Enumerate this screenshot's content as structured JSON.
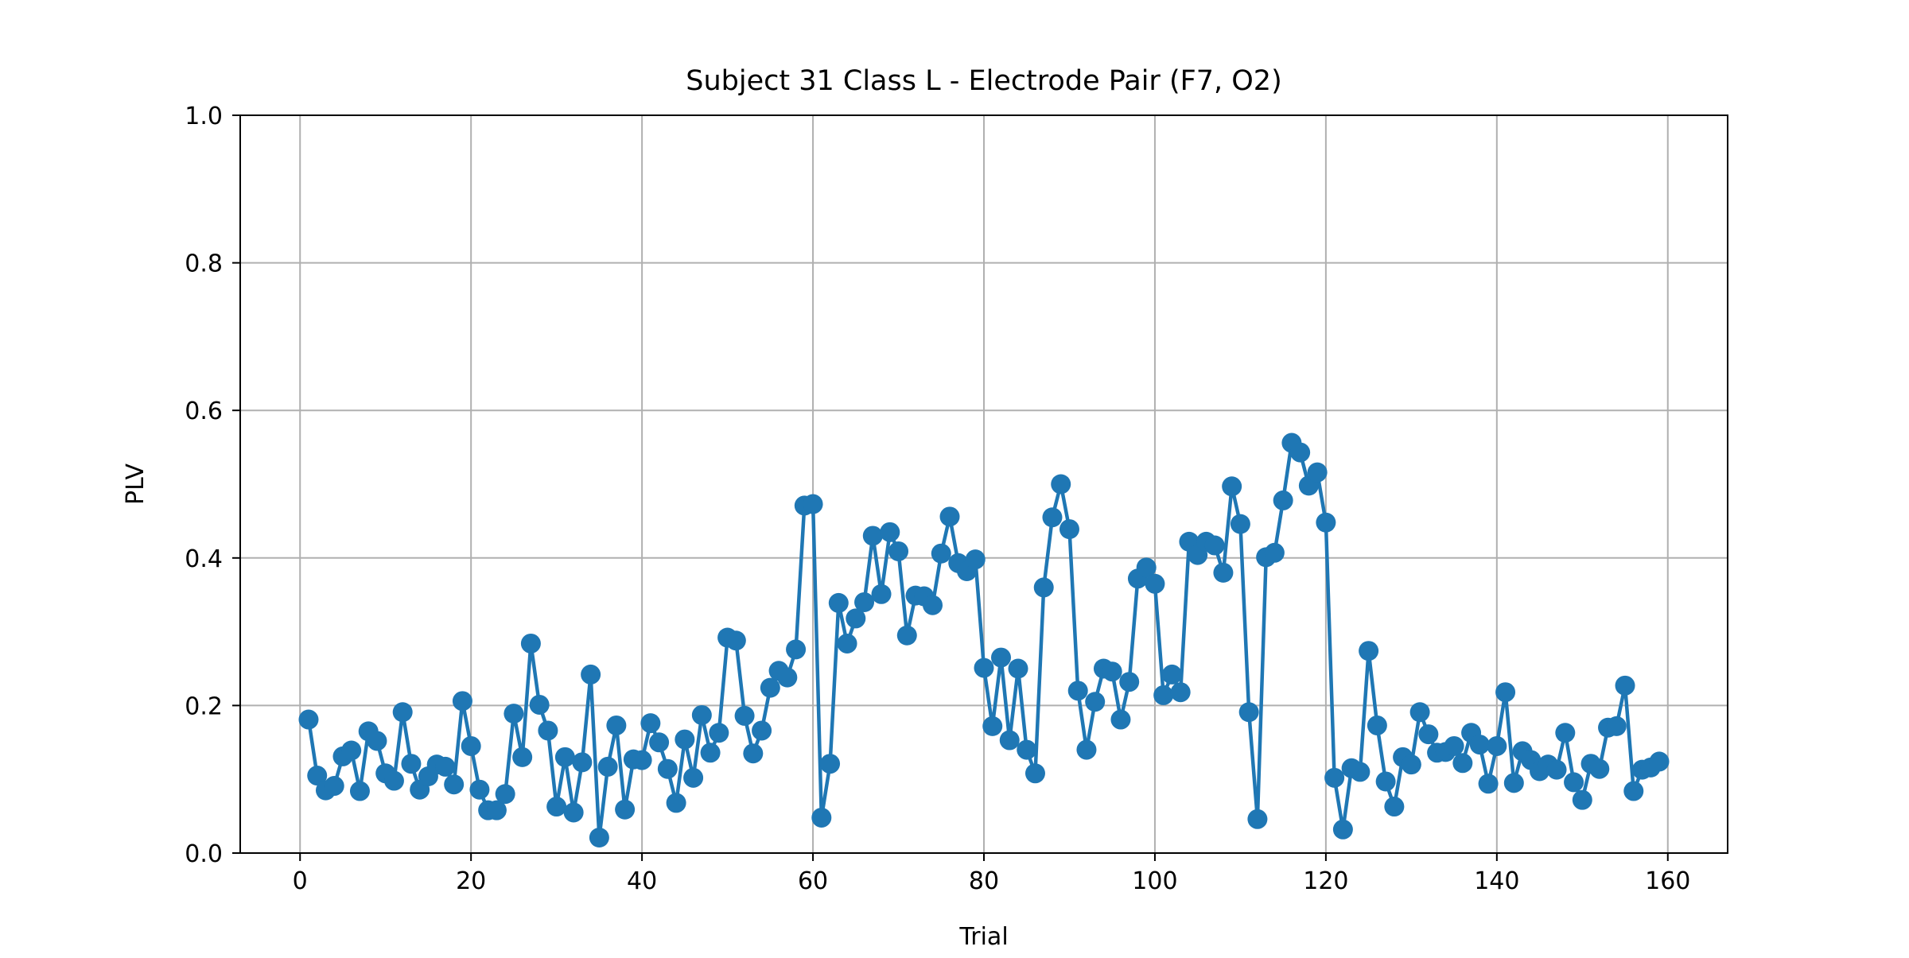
{
  "colors": {
    "series": "#1f77b4",
    "grid": "#b0b0b0",
    "axis": "#000000",
    "background": "#ffffff"
  },
  "chart_data": {
    "type": "line",
    "markers": "circle",
    "title": "Subject 31 Class L - Electrode Pair (F7, O2)",
    "xlabel": "Trial",
    "ylabel": "PLV",
    "xlim": [
      -7,
      167
    ],
    "ylim": [
      0.0,
      1.0
    ],
    "grid": true,
    "xticks": [
      0,
      20,
      40,
      60,
      80,
      100,
      120,
      140,
      160
    ],
    "xtick_labels": [
      "0",
      "20",
      "40",
      "60",
      "80",
      "100",
      "120",
      "140",
      "160"
    ],
    "yticks": [
      0.0,
      0.2,
      0.4,
      0.6,
      0.8,
      1.0
    ],
    "ytick_labels": [
      "0.0",
      "0.2",
      "0.4",
      "0.6",
      "0.8",
      "1.0"
    ],
    "series": [
      {
        "x": [
          1,
          2,
          3,
          4,
          5,
          6,
          7,
          8,
          9,
          10,
          11,
          12,
          13,
          14,
          15,
          16,
          17,
          18,
          19,
          20,
          21,
          22,
          23,
          24,
          25,
          26,
          27,
          28,
          29,
          30,
          31,
          32,
          33,
          34,
          35,
          36,
          37,
          38,
          39,
          40,
          41,
          42,
          43,
          44,
          45,
          46,
          47,
          48,
          49,
          50,
          51,
          52,
          53,
          54,
          55,
          56,
          57,
          58,
          59,
          60,
          61,
          62,
          63,
          64,
          65,
          66,
          67,
          68,
          69,
          70,
          71,
          72,
          73,
          74,
          75,
          76,
          77,
          78,
          79,
          80,
          81,
          82,
          83,
          84,
          85,
          86,
          87,
          88,
          89,
          90,
          91,
          92,
          93,
          94,
          95,
          96,
          97,
          98,
          99,
          100,
          101,
          102,
          103,
          104,
          105,
          106,
          107,
          108,
          109,
          110,
          111,
          112,
          113,
          114,
          115,
          116,
          117,
          118,
          119,
          120,
          121,
          122,
          123,
          124,
          125,
          126,
          127,
          128,
          129,
          130,
          131,
          132,
          133,
          134,
          135,
          136,
          137,
          138,
          139,
          140,
          141,
          142,
          143,
          144,
          145,
          146,
          147,
          148,
          149,
          150,
          151,
          152,
          153,
          154,
          155,
          156,
          157,
          158,
          159
        ],
        "values": [
          0.181,
          0.105,
          0.085,
          0.091,
          0.131,
          0.139,
          0.084,
          0.165,
          0.152,
          0.108,
          0.098,
          0.191,
          0.121,
          0.086,
          0.104,
          0.12,
          0.117,
          0.093,
          0.206,
          0.145,
          0.086,
          0.058,
          0.058,
          0.08,
          0.189,
          0.13,
          0.284,
          0.201,
          0.166,
          0.063,
          0.13,
          0.055,
          0.123,
          0.242,
          0.021,
          0.117,
          0.173,
          0.059,
          0.127,
          0.126,
          0.176,
          0.15,
          0.114,
          0.068,
          0.154,
          0.102,
          0.187,
          0.136,
          0.163,
          0.292,
          0.288,
          0.186,
          0.135,
          0.166,
          0.224,
          0.247,
          0.238,
          0.276,
          0.471,
          0.473,
          0.048,
          0.121,
          0.339,
          0.284,
          0.318,
          0.34,
          0.43,
          0.351,
          0.435,
          0.409,
          0.295,
          0.349,
          0.348,
          0.336,
          0.406,
          0.456,
          0.393,
          0.382,
          0.398,
          0.251,
          0.172,
          0.265,
          0.153,
          0.25,
          0.14,
          0.108,
          0.36,
          0.455,
          0.5,
          0.439,
          0.22,
          0.14,
          0.205,
          0.25,
          0.246,
          0.181,
          0.232,
          0.372,
          0.387,
          0.365,
          0.214,
          0.242,
          0.218,
          0.422,
          0.404,
          0.422,
          0.417,
          0.38,
          0.497,
          0.446,
          0.191,
          0.046,
          0.401,
          0.407,
          0.478,
          0.556,
          0.543,
          0.498,
          0.516,
          0.448,
          0.102,
          0.032,
          0.115,
          0.11,
          0.274,
          0.173,
          0.097,
          0.063,
          0.13,
          0.12,
          0.191,
          0.161,
          0.136,
          0.137,
          0.145,
          0.122,
          0.163,
          0.147,
          0.094,
          0.145,
          0.218,
          0.095,
          0.138,
          0.126,
          0.111,
          0.12,
          0.113,
          0.163,
          0.096,
          0.072,
          0.121,
          0.114,
          0.17,
          0.172,
          0.227,
          0.084,
          0.113,
          0.116,
          0.124
        ]
      }
    ]
  }
}
